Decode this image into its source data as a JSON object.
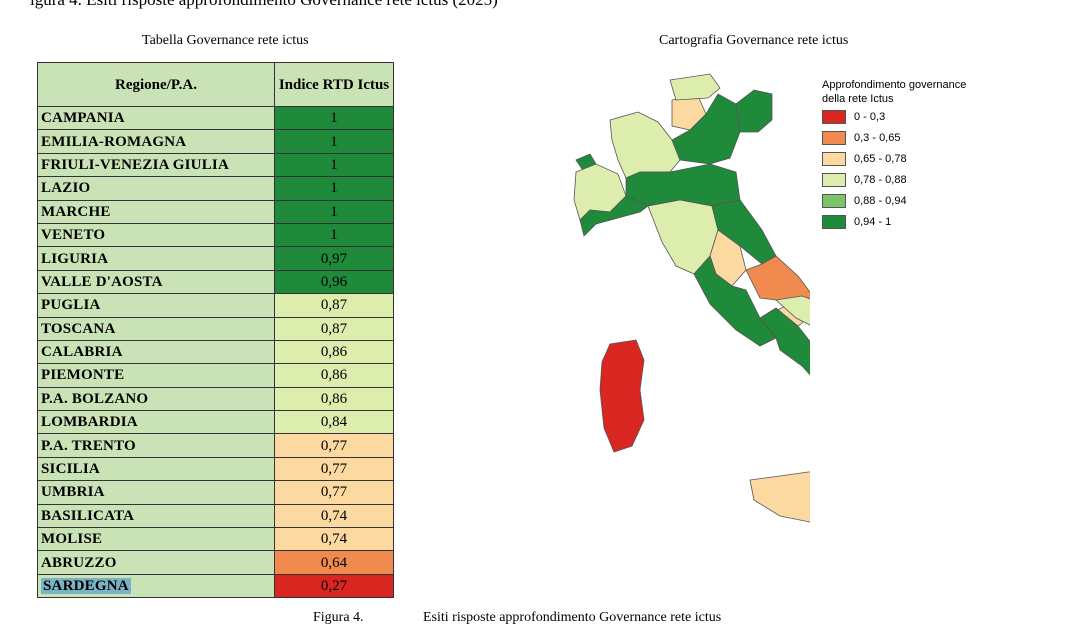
{
  "top_text": "igura 4. Esiti risposte approfondimento Governance rete ictus (2025)",
  "table": {
    "title": "Tabella Governance rete ictus",
    "header_region": "Regione/P.A.",
    "header_index": "Indice RTD Ictus",
    "rows": [
      {
        "name": "CAMPANIA",
        "value": "1",
        "color": "#1e8a3a"
      },
      {
        "name": "EMILIA-ROMAGNA",
        "value": "1",
        "color": "#1e8a3a"
      },
      {
        "name": "FRIULI-VENEZIA GIULIA",
        "value": "1",
        "color": "#1e8a3a"
      },
      {
        "name": "LAZIO",
        "value": "1",
        "color": "#1e8a3a"
      },
      {
        "name": "MARCHE",
        "value": "1",
        "color": "#1e8a3a"
      },
      {
        "name": "VENETO",
        "value": "1",
        "color": "#1e8a3a"
      },
      {
        "name": "LIGURIA",
        "value": "0,97",
        "color": "#1e8a3a"
      },
      {
        "name": "VALLE D'AOSTA",
        "value": "0,96",
        "color": "#1e8a3a"
      },
      {
        "name": "PUGLIA",
        "value": "0,87",
        "color": "#ddedae"
      },
      {
        "name": "TOSCANA",
        "value": "0,87",
        "color": "#ddedae"
      },
      {
        "name": "CALABRIA",
        "value": "0,86",
        "color": "#ddedae"
      },
      {
        "name": "PIEMONTE",
        "value": "0,86",
        "color": "#ddedae"
      },
      {
        "name": "P.A. BOLZANO",
        "value": "0,86",
        "color": "#ddedae"
      },
      {
        "name": "LOMBARDIA",
        "value": "0,84",
        "color": "#ddedae"
      },
      {
        "name": "P.A. TRENTO",
        "value": "0,77",
        "color": "#fcd9a0"
      },
      {
        "name": "SICILIA",
        "value": "0,77",
        "color": "#fcd9a0"
      },
      {
        "name": "UMBRIA",
        "value": "0,77",
        "color": "#fcd9a0"
      },
      {
        "name": "BASILICATA",
        "value": "0,74",
        "color": "#fcd9a0"
      },
      {
        "name": "MOLISE",
        "value": "0,74",
        "color": "#fcd9a0"
      },
      {
        "name": "ABRUZZO",
        "value": "0,64",
        "color": "#f08a4e"
      },
      {
        "name": "SARDEGNA",
        "value": "0,27",
        "color": "#da2620"
      }
    ]
  },
  "map": {
    "title": "Cartografia Governance rete ictus",
    "legend_title": "Approfondimento governance della rete Ictus",
    "legend": [
      {
        "label": "0 - 0,3",
        "color": "#da2620"
      },
      {
        "label": "0,3 - 0,65",
        "color": "#f08a4e"
      },
      {
        "label": "0,65 - 0,78",
        "color": "#fcd9a0"
      },
      {
        "label": "0,78 - 0,88",
        "color": "#ddedae"
      },
      {
        "label": "0,88 - 0,94",
        "color": "#7cc46a"
      },
      {
        "label": "0,94 - 1",
        "color": "#1e8a3a"
      }
    ]
  },
  "caption": {
    "figure": "Figura 4.",
    "text": "Esiti risposte approfondimento Governance rete ictus"
  }
}
